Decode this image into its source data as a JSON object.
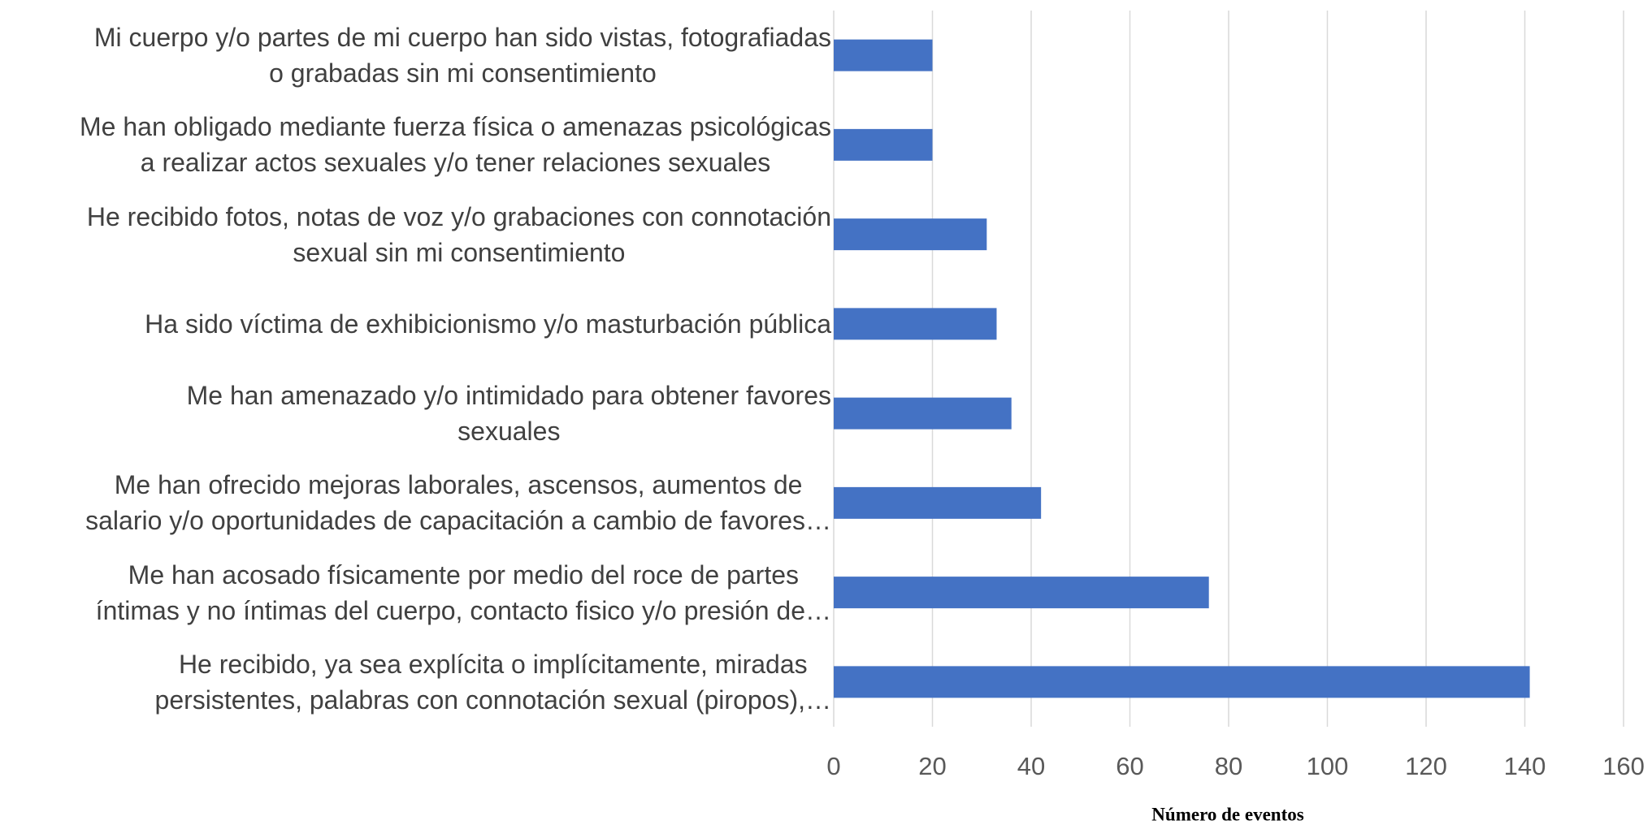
{
  "chart_data": {
    "type": "hbar",
    "categories": [
      "Mi cuerpo y/o partes de mi cuerpo han sido vistas, fotografiadas\no grabadas sin mi consentimiento",
      "Me han obligado mediante fuerza física o amenazas psicológicas\na realizar actos sexuales y/o tener relaciones sexuales",
      "He recibido fotos, notas de voz y/o grabaciones con connotación\nsexual sin mi consentimiento",
      "Ha sido víctima de exhibicionismo y/o masturbación pública",
      "Me han amenazado y/o intimidado para obtener favores\nsexuales",
      "Me han ofrecido mejoras laborales, ascensos, aumentos de\nsalario y/o oportunidades de capacitación a cambio de favores…",
      "Me han acosado físicamente por medio del roce de partes\níntimas y no íntimas del cuerpo, contacto fisico y/o presión de…",
      "He recibido, ya sea explícita o implícitamente, miradas\npersistentes, palabras con connotación sexual (piropos),…"
    ],
    "values": [
      20,
      20,
      31,
      33,
      36,
      42,
      76,
      141
    ],
    "color": "#4472c4",
    "xlim": [
      0,
      160
    ],
    "xticks": [
      0,
      20,
      40,
      60,
      80,
      100,
      120,
      140,
      160
    ],
    "xlabel": "Número de eventos",
    "grid": true
  }
}
